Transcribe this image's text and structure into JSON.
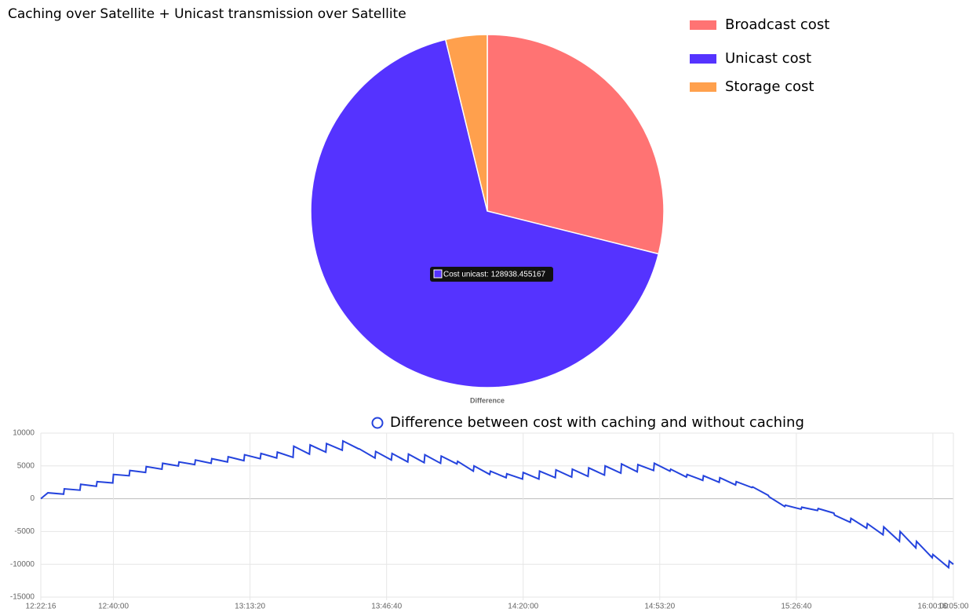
{
  "chart_data": [
    {
      "type": "pie",
      "title": "Caching over Satellite + Unicast transmission over Satellite",
      "categories": [
        "Broadcast cost",
        "Unicast cost",
        "Storage cost"
      ],
      "values": [
        55370,
        128938.455167,
        7280
      ],
      "colors": [
        "#ff7373",
        "#5533ff",
        "#ffa04d"
      ],
      "tooltip": "Cost unicast: 128938.455167",
      "label": "Difference"
    },
    {
      "type": "line",
      "x": [
        "12:22:16",
        "12:24:00",
        "12:27:50",
        "12:28:00",
        "12:31:50",
        "12:32:00",
        "12:35:50",
        "12:36:00",
        "12:39:50",
        "12:40:00",
        "12:43:50",
        "12:44:00",
        "12:47:50",
        "12:48:00",
        "12:51:50",
        "12:52:00",
        "12:55:50",
        "12:56:00",
        "12:59:50",
        "13:00:00",
        "13:03:50",
        "13:04:00",
        "13:07:50",
        "13:08:00",
        "13:11:50",
        "13:12:00",
        "13:15:50",
        "13:16:00",
        "13:19:50",
        "13:20:00",
        "13:23:50",
        "13:24:00",
        "13:27:50",
        "13:28:00",
        "13:31:50",
        "13:32:00",
        "13:35:50",
        "13:36:00",
        "13:39:50",
        "13:40:00",
        "13:43:50",
        "13:44:00",
        "13:47:50",
        "13:48:00",
        "13:51:50",
        "13:52:00",
        "13:55:50",
        "13:56:00",
        "13:59:50",
        "14:00:00",
        "14:03:50",
        "14:04:00",
        "14:07:50",
        "14:08:00",
        "14:11:50",
        "14:12:00",
        "14:15:50",
        "14:16:00",
        "14:19:50",
        "14:20:00",
        "14:23:50",
        "14:24:00",
        "14:27:50",
        "14:28:00",
        "14:31:50",
        "14:32:00",
        "14:35:50",
        "14:36:00",
        "14:39:50",
        "14:40:00",
        "14:43:50",
        "14:44:00",
        "14:47:50",
        "14:48:00",
        "14:51:50",
        "14:52:00",
        "14:55:50",
        "14:56:00",
        "14:59:50",
        "15:00:00",
        "15:03:50",
        "15:04:00",
        "15:07:50",
        "15:08:00",
        "15:11:50",
        "15:12:00",
        "15:15:50",
        "15:16:00",
        "15:19:50",
        "15:20:00",
        "15:23:50",
        "15:24:00",
        "15:27:50",
        "15:28:00",
        "15:31:50",
        "15:32:00",
        "15:35:50",
        "15:36:00",
        "15:39:50",
        "15:40:00",
        "15:43:50",
        "15:44:00",
        "15:47:50",
        "15:48:00",
        "15:51:50",
        "15:52:00",
        "15:55:50",
        "15:56:00",
        "15:59:50",
        "16:00:00",
        "16:03:50",
        "16:04:00",
        "16:05:00"
      ],
      "series": [
        {
          "name": "Difference between cost with caching and without caching",
          "color": "#2443dd",
          "values": [
            0,
            900,
            700,
            1500,
            1300,
            2200,
            1900,
            2600,
            2400,
            3700,
            3500,
            4300,
            4000,
            4900,
            4500,
            5400,
            5000,
            5600,
            5200,
            5900,
            5400,
            6100,
            5600,
            6400,
            5800,
            6700,
            6100,
            6900,
            6200,
            7100,
            6300,
            8000,
            6800,
            8200,
            7100,
            8400,
            7400,
            8800,
            7600,
            7600,
            6200,
            7200,
            5900,
            6900,
            5600,
            6800,
            5500,
            6700,
            5400,
            6500,
            5300,
            5700,
            4200,
            5000,
            3700,
            4200,
            3200,
            3800,
            3000,
            4000,
            3000,
            4200,
            3200,
            4400,
            3300,
            4500,
            3400,
            4700,
            3600,
            5000,
            3900,
            5300,
            4100,
            5200,
            4300,
            5400,
            4200,
            4500,
            3300,
            3700,
            2800,
            3500,
            2500,
            3200,
            2100,
            2600,
            1700,
            1800,
            500,
            300,
            -1200,
            -1000,
            -1600,
            -1300,
            -1800,
            -1500,
            -2200,
            -2500,
            -3600,
            -3000,
            -4500,
            -3800,
            -5500,
            -4300,
            -6500,
            -5000,
            -7500,
            -6500,
            -9000,
            -8500,
            -10500,
            -9500,
            -10000
          ]
        }
      ],
      "xlim": [
        "12:22:16",
        "16:05:00"
      ],
      "xticks": [
        "12:22:16",
        "12:40:00",
        "13:13:20",
        "13:46:40",
        "14:20:00",
        "14:53:20",
        "15:26:40",
        "16:00:00",
        "16:05:00"
      ],
      "ylim": [
        -15000,
        10000
      ],
      "yticks": [
        -15000,
        -10000,
        -5000,
        0,
        5000,
        10000
      ],
      "grid": true
    }
  ]
}
